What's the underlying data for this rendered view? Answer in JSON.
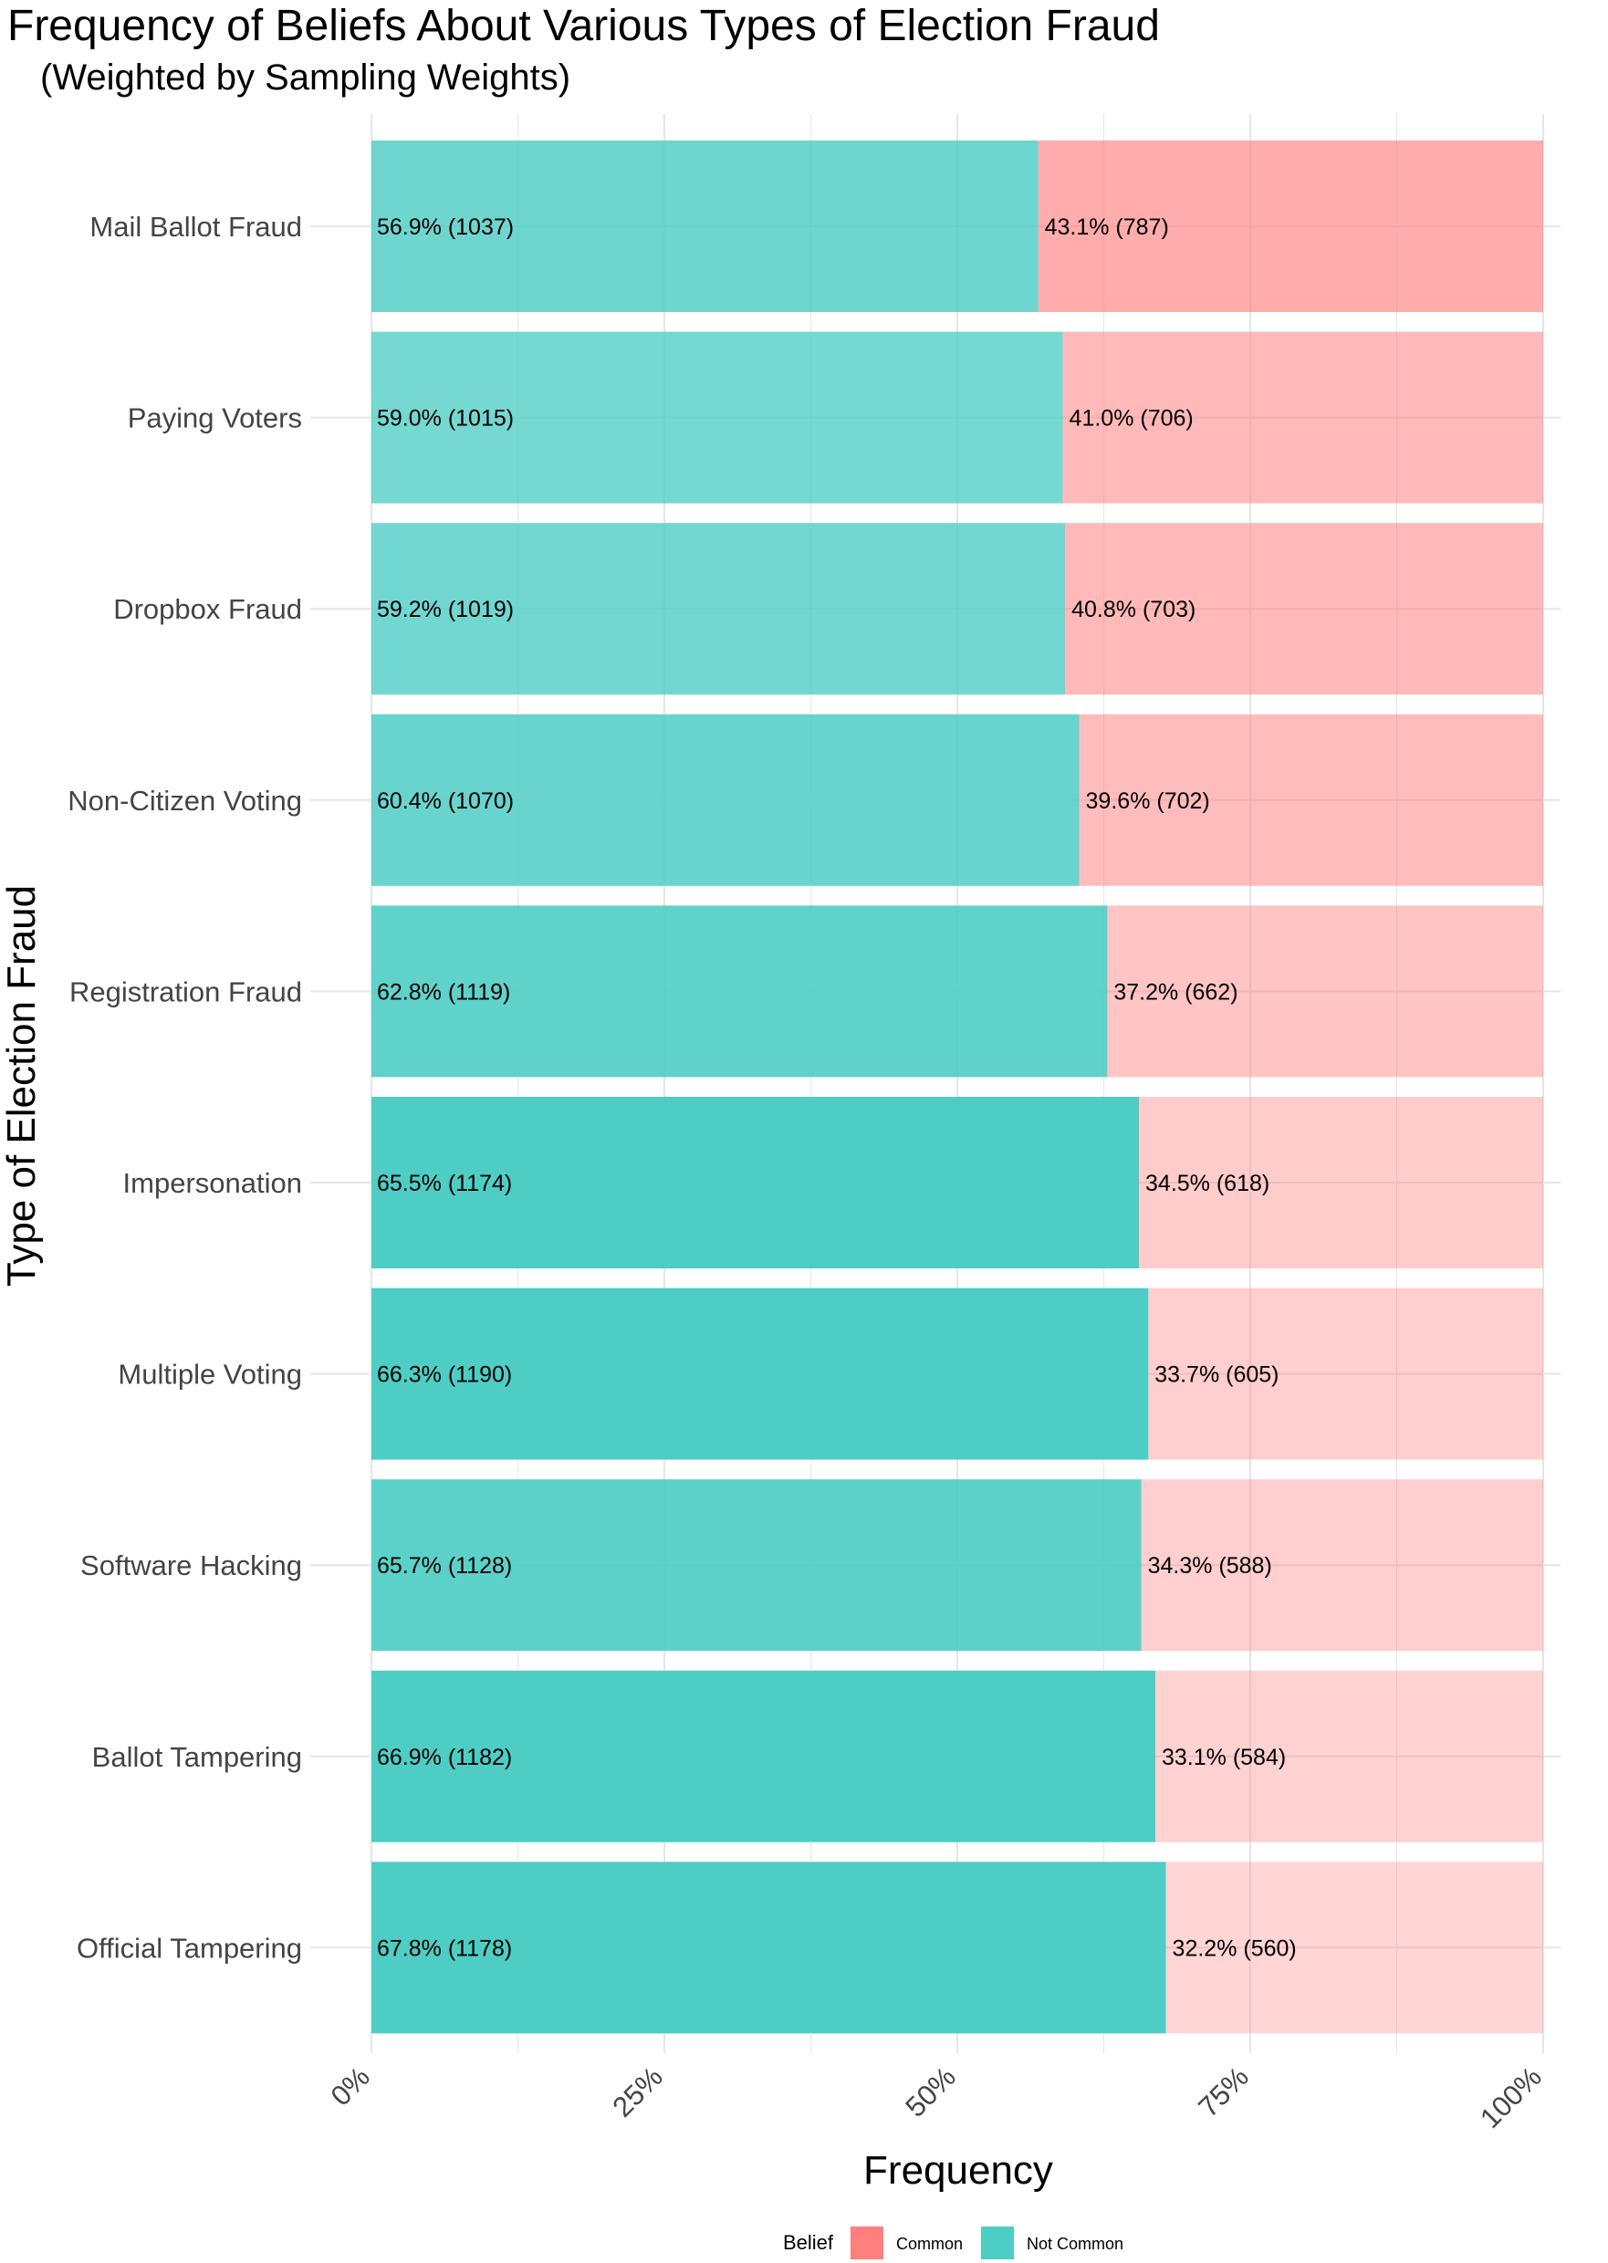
{
  "chart_data": {
    "type": "bar",
    "orientation": "horizontal",
    "stacked": true,
    "title": "Frequency of Beliefs About Various Types of Election Fraud",
    "subtitle": "(Weighted by Sampling Weights)",
    "xlabel": "Frequency",
    "ylabel": "Type of Election Fraud",
    "xlim": [
      0,
      100
    ],
    "x_ticks": [
      "0%",
      "25%",
      "50%",
      "75%",
      "100%"
    ],
    "grid": true,
    "legend_position": "bottom",
    "legend_title": "Belief",
    "categories": [
      "Mail Ballot Fraud",
      "Paying Voters",
      "Dropbox Fraud",
      "Non-Citizen Voting",
      "Registration Fraud",
      "Impersonation",
      "Multiple Voting",
      "Software Hacking",
      "Ballot Tampering",
      "Official Tampering"
    ],
    "series": [
      {
        "name": "Not Common",
        "color": "#4ecdc4",
        "values": [
          56.9,
          59.0,
          59.2,
          60.4,
          62.8,
          65.5,
          66.3,
          65.7,
          66.9,
          67.8
        ],
        "labels": [
          "56.9% (1037)",
          "59.0% (1015)",
          "59.2% (1019)",
          "60.4% (1070)",
          "62.8% (1119)",
          "65.5% (1174)",
          "66.3% (1190)",
          "65.7% (1128)",
          "66.9% (1182)",
          "67.8% (1178)"
        ],
        "opacity": [
          0.82,
          0.78,
          0.8,
          0.85,
          0.9,
          1.0,
          1.0,
          0.92,
          1.0,
          1.0
        ]
      },
      {
        "name": "Common",
        "color": "#ff7f7f",
        "values": [
          43.1,
          41.0,
          40.8,
          39.6,
          37.2,
          34.5,
          33.7,
          34.3,
          33.1,
          32.2
        ],
        "labels": [
          "43.1% (787)",
          "41.0% (706)",
          "40.8% (703)",
          "39.6% (702)",
          "37.2% (662)",
          "34.5% (618)",
          "33.7% (605)",
          "34.3% (588)",
          "33.1% (584)",
          "32.2% (560)"
        ],
        "opacity": [
          0.65,
          0.55,
          0.55,
          0.52,
          0.45,
          0.4,
          0.38,
          0.38,
          0.35,
          0.33
        ]
      }
    ]
  }
}
